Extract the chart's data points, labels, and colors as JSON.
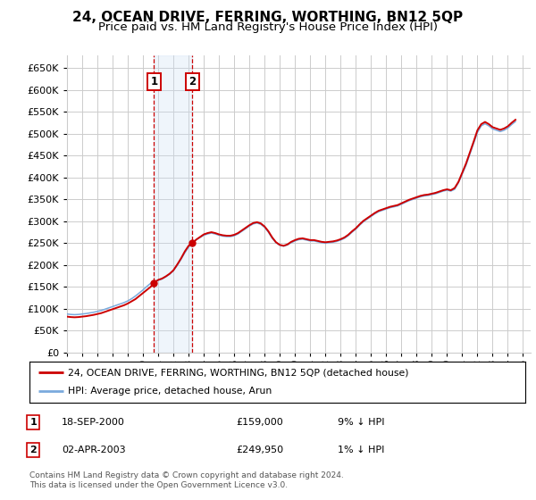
{
  "title": "24, OCEAN DRIVE, FERRING, WORTHING, BN12 5QP",
  "subtitle": "Price paid vs. HM Land Registry's House Price Index (HPI)",
  "title_fontsize": 11,
  "subtitle_fontsize": 9.5,
  "ylabel_ticks": [
    0,
    50000,
    100000,
    150000,
    200000,
    250000,
    300000,
    350000,
    400000,
    450000,
    500000,
    550000,
    600000,
    650000
  ],
  "ylim": [
    0,
    680000
  ],
  "xlim_start": 1995.0,
  "xlim_end": 2025.5,
  "background_color": "#ffffff",
  "grid_color": "#cccccc",
  "transaction1_date": 2000.72,
  "transaction2_date": 2003.25,
  "transaction1_price": 159000,
  "transaction2_price": 249950,
  "shade_color": "#cce0f5",
  "dashed_color": "#cc0000",
  "hpi_line_color": "#7aaadd",
  "property_line_color": "#cc0000",
  "legend_label1": "24, OCEAN DRIVE, FERRING, WORTHING, BN12 5QP (detached house)",
  "legend_label2": "HPI: Average price, detached house, Arun",
  "table_entries": [
    {
      "num": 1,
      "date": "18-SEP-2000",
      "price": "£159,000",
      "change": "9% ↓ HPI"
    },
    {
      "num": 2,
      "date": "02-APR-2003",
      "price": "£249,950",
      "change": "1% ↓ HPI"
    }
  ],
  "footnote": "Contains HM Land Registry data © Crown copyright and database right 2024.\nThis data is licensed under the Open Government Licence v3.0.",
  "hpi_data_x": [
    1995.0,
    1995.25,
    1995.5,
    1995.75,
    1996.0,
    1996.25,
    1996.5,
    1996.75,
    1997.0,
    1997.25,
    1997.5,
    1997.75,
    1998.0,
    1998.25,
    1998.5,
    1998.75,
    1999.0,
    1999.25,
    1999.5,
    1999.75,
    2000.0,
    2000.25,
    2000.5,
    2000.75,
    2001.0,
    2001.25,
    2001.5,
    2001.75,
    2002.0,
    2002.25,
    2002.5,
    2002.75,
    2003.0,
    2003.25,
    2003.5,
    2003.75,
    2004.0,
    2004.25,
    2004.5,
    2004.75,
    2005.0,
    2005.25,
    2005.5,
    2005.75,
    2006.0,
    2006.25,
    2006.5,
    2006.75,
    2007.0,
    2007.25,
    2007.5,
    2007.75,
    2008.0,
    2008.25,
    2008.5,
    2008.75,
    2009.0,
    2009.25,
    2009.5,
    2009.75,
    2010.0,
    2010.25,
    2010.5,
    2010.75,
    2011.0,
    2011.25,
    2011.5,
    2011.75,
    2012.0,
    2012.25,
    2012.5,
    2012.75,
    2013.0,
    2013.25,
    2013.5,
    2013.75,
    2014.0,
    2014.25,
    2014.5,
    2014.75,
    2015.0,
    2015.25,
    2015.5,
    2015.75,
    2016.0,
    2016.25,
    2016.5,
    2016.75,
    2017.0,
    2017.25,
    2017.5,
    2017.75,
    2018.0,
    2018.25,
    2018.5,
    2018.75,
    2019.0,
    2019.25,
    2019.5,
    2019.75,
    2020.0,
    2020.25,
    2020.5,
    2020.75,
    2021.0,
    2021.25,
    2021.5,
    2021.75,
    2022.0,
    2022.25,
    2022.5,
    2022.75,
    2023.0,
    2023.25,
    2023.5,
    2023.75,
    2024.0,
    2024.25,
    2024.5
  ],
  "hpi_data_y": [
    88000,
    87000,
    86500,
    87000,
    88000,
    89000,
    90500,
    92000,
    94000,
    96000,
    99000,
    102000,
    105000,
    108000,
    111000,
    114000,
    118000,
    123000,
    129000,
    136000,
    143000,
    151000,
    158000,
    163000,
    165000,
    168000,
    173000,
    179000,
    187000,
    199000,
    213000,
    228000,
    241000,
    251000,
    258000,
    263000,
    268000,
    271000,
    273000,
    271000,
    268000,
    266000,
    265000,
    265000,
    267000,
    271000,
    277000,
    283000,
    289000,
    294000,
    296000,
    293000,
    286000,
    275000,
    261000,
    251000,
    245000,
    243000,
    246000,
    251000,
    255000,
    258000,
    259000,
    257000,
    255000,
    255000,
    253000,
    251000,
    250000,
    251000,
    252000,
    254000,
    257000,
    261000,
    267000,
    275000,
    282000,
    291000,
    299000,
    305000,
    311000,
    317000,
    322000,
    325000,
    328000,
    331000,
    333000,
    335000,
    339000,
    343000,
    347000,
    350000,
    353000,
    356000,
    358000,
    359000,
    361000,
    363000,
    366000,
    369000,
    371000,
    369000,
    373000,
    388000,
    408000,
    428000,
    453000,
    478000,
    503000,
    518000,
    523000,
    518000,
    511000,
    508000,
    505000,
    508000,
    513000,
    521000,
    528000
  ],
  "property_data_x": [
    1995.0,
    1995.25,
    1995.5,
    1995.75,
    1996.0,
    1996.25,
    1996.5,
    1996.75,
    1997.0,
    1997.25,
    1997.5,
    1997.75,
    1998.0,
    1998.25,
    1998.5,
    1998.75,
    1999.0,
    1999.25,
    1999.5,
    1999.75,
    2000.0,
    2000.25,
    2000.5,
    2000.72,
    2001.0,
    2001.25,
    2001.5,
    2001.75,
    2002.0,
    2002.25,
    2002.5,
    2002.75,
    2003.0,
    2003.25,
    2003.5,
    2003.75,
    2004.0,
    2004.25,
    2004.5,
    2004.75,
    2005.0,
    2005.25,
    2005.5,
    2005.75,
    2006.0,
    2006.25,
    2006.5,
    2006.75,
    2007.0,
    2007.25,
    2007.5,
    2007.75,
    2008.0,
    2008.25,
    2008.5,
    2008.75,
    2009.0,
    2009.25,
    2009.5,
    2009.75,
    2010.0,
    2010.25,
    2010.5,
    2010.75,
    2011.0,
    2011.25,
    2011.5,
    2011.75,
    2012.0,
    2012.25,
    2012.5,
    2012.75,
    2013.0,
    2013.25,
    2013.5,
    2013.75,
    2014.0,
    2014.25,
    2014.5,
    2014.75,
    2015.0,
    2015.25,
    2015.5,
    2015.75,
    2016.0,
    2016.25,
    2016.5,
    2016.75,
    2017.0,
    2017.25,
    2017.5,
    2017.75,
    2018.0,
    2018.25,
    2018.5,
    2018.75,
    2019.0,
    2019.25,
    2019.5,
    2019.75,
    2020.0,
    2020.25,
    2020.5,
    2020.75,
    2021.0,
    2021.25,
    2021.5,
    2021.75,
    2022.0,
    2022.25,
    2022.5,
    2022.75,
    2023.0,
    2023.25,
    2023.5,
    2023.75,
    2024.0,
    2024.25,
    2024.5
  ],
  "property_data_y": [
    82000,
    81000,
    80500,
    81000,
    82000,
    83000,
    84500,
    86000,
    88000,
    90000,
    93000,
    96000,
    99000,
    102000,
    105000,
    108000,
    112000,
    117000,
    122000,
    129000,
    136000,
    143000,
    150000,
    159000,
    166000,
    169000,
    174000,
    180000,
    188000,
    201000,
    215000,
    231000,
    244000,
    249950,
    258000,
    264000,
    270000,
    273000,
    275000,
    273000,
    270000,
    268000,
    267000,
    267000,
    269000,
    273000,
    279000,
    285000,
    291000,
    296000,
    298000,
    295000,
    288000,
    277000,
    263000,
    252000,
    246000,
    244000,
    247000,
    253000,
    257000,
    260000,
    261000,
    259000,
    257000,
    257000,
    255000,
    253000,
    252000,
    253000,
    254000,
    256000,
    259000,
    263000,
    269000,
    277000,
    284000,
    293000,
    301000,
    307000,
    313000,
    319000,
    324000,
    327000,
    330000,
    333000,
    335000,
    337000,
    341000,
    345000,
    349000,
    352000,
    355000,
    358000,
    360000,
    361000,
    363000,
    365000,
    368000,
    371000,
    373000,
    371000,
    376000,
    390000,
    411000,
    432000,
    457000,
    482000,
    508000,
    522000,
    527000,
    522000,
    515000,
    512000,
    509000,
    512000,
    517000,
    525000,
    532000
  ]
}
